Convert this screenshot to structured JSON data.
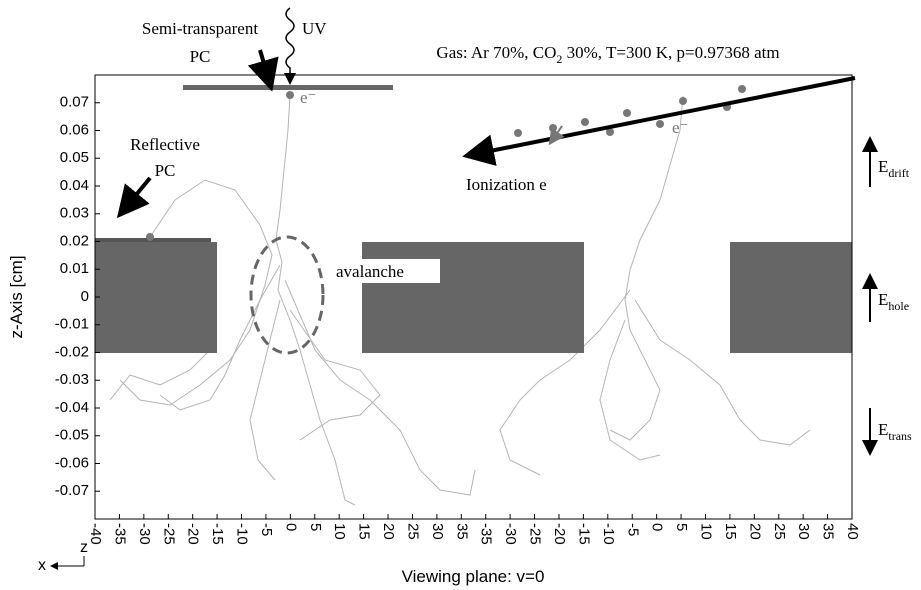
{
  "chart_data": {
    "type": "trajectory",
    "title": {
      "text": "Gas: Ar 70%, CO",
      "sub": "2",
      "rest": " 30%, T=300 K, p=0.97368 atm"
    },
    "ylabel": "z-Axis [cm]",
    "xlabel": "Viewing plane: v=0",
    "ylim": [
      -0.08,
      0.08
    ],
    "yticks": [
      0.07,
      0.06,
      0.05,
      0.04,
      0.03,
      0.02,
      0.01,
      0,
      -0.01,
      -0.02,
      -0.03,
      -0.04,
      -0.05,
      -0.06,
      -0.07
    ],
    "x_cells": [
      {
        "xlim": [
          -40,
          37.5
        ],
        "xticks": [
          -40,
          -35,
          -30,
          -25,
          -20,
          -15,
          -10,
          -5,
          0,
          5,
          10,
          15,
          20,
          25,
          30,
          35
        ]
      },
      {
        "xlim": [
          -37.5,
          40
        ],
        "xticks": [
          -35,
          -30,
          -25,
          -20,
          -15,
          -10,
          -5,
          0,
          5,
          10,
          15,
          20,
          25,
          30,
          35,
          40
        ]
      }
    ],
    "annotations": {
      "semi_transparent_pc": [
        "Semi-transparent",
        "PC"
      ],
      "uv": "UV",
      "reflective_pc": [
        "Reflective",
        "PC"
      ],
      "ionization": "Ionization e",
      "avalanche": "avalanche",
      "electron": "e⁻",
      "fields": [
        {
          "symbol": "E",
          "sub": "drift"
        },
        {
          "symbol": "E",
          "sub": "hole"
        },
        {
          "symbol": "E",
          "sub": "trans"
        }
      ],
      "corner": {
        "z": "z",
        "x": "x"
      }
    }
  }
}
